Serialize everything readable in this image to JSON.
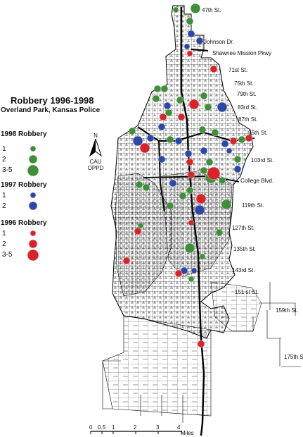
{
  "title": "Robbery 1996-1998",
  "subtitle": "Overland Park, Kansas Police",
  "colors": {
    "y1998": "#3f8f3a",
    "y1997": "#2c47a8",
    "y1996": "#d8232a",
    "road": "#000000"
  },
  "legend": [
    {
      "heading": "1998 Robbery",
      "key": "y1998",
      "rows": [
        "1",
        "2",
        "3-5"
      ]
    },
    {
      "heading": "1997 Robbery",
      "key": "y1997",
      "rows": [
        "1",
        "2"
      ]
    },
    {
      "heading": "1996 Robbery",
      "key": "y1996",
      "rows": [
        "1",
        "2",
        "3-5"
      ]
    }
  ],
  "north_arrow": {
    "letter": "N",
    "line1": "CAU",
    "line2": "OPPD"
  },
  "streets": [
    "47th St.",
    "Johnson Dr.",
    "Shawnee Mission Pkwy",
    "71st St.",
    "75th St.",
    "79th St.",
    "83rd St.",
    "87th St.",
    "95th St.",
    "103rd St.",
    "College Blvd.",
    "119th St.",
    "127th St.",
    "135th St.",
    "143rd St.",
    "151 st St.",
    "159th St.",
    "175th St"
  ],
  "scale_bar": {
    "labels": [
      "0",
      "0.5",
      "1",
      "2",
      "3",
      "4"
    ],
    "unit": "Miles"
  }
}
